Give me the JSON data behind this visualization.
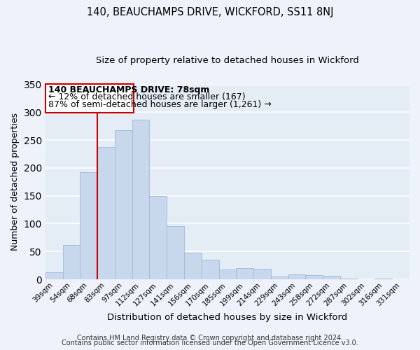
{
  "title": "140, BEAUCHAMPS DRIVE, WICKFORD, SS11 8NJ",
  "subtitle": "Size of property relative to detached houses in Wickford",
  "xlabel": "Distribution of detached houses by size in Wickford",
  "ylabel": "Number of detached properties",
  "bar_labels": [
    "39sqm",
    "54sqm",
    "68sqm",
    "83sqm",
    "97sqm",
    "112sqm",
    "127sqm",
    "141sqm",
    "156sqm",
    "170sqm",
    "185sqm",
    "199sqm",
    "214sqm",
    "229sqm",
    "243sqm",
    "258sqm",
    "272sqm",
    "287sqm",
    "302sqm",
    "316sqm",
    "331sqm"
  ],
  "bar_values": [
    13,
    62,
    192,
    237,
    268,
    286,
    149,
    96,
    48,
    35,
    18,
    20,
    19,
    5,
    9,
    7,
    6,
    1,
    0,
    1,
    0
  ],
  "bar_color": "#c8d8ec",
  "bar_edge_color": "#a0b8d8",
  "vline_color": "#cc0000",
  "annotation_line1": "140 BEAUCHAMPS DRIVE: 78sqm",
  "annotation_line2": "← 12% of detached houses are smaller (167)",
  "annotation_line3": "87% of semi-detached houses are larger (1,261) →",
  "annotation_box_color": "#ffffff",
  "annotation_box_edge_color": "#cc0000",
  "ylim": [
    0,
    350
  ],
  "yticks": [
    0,
    50,
    100,
    150,
    200,
    250,
    300,
    350
  ],
  "footer1": "Contains HM Land Registry data © Crown copyright and database right 2024.",
  "footer2": "Contains public sector information licensed under the Open Government Licence v3.0.",
  "background_color": "#eef2fa",
  "plot_background_color": "#e4ecf6",
  "grid_color": "#ffffff",
  "title_fontsize": 10.5,
  "subtitle_fontsize": 9.5,
  "axis_label_fontsize": 9,
  "tick_fontsize": 7.5,
  "annotation_fontsize": 9,
  "footer_fontsize": 7
}
